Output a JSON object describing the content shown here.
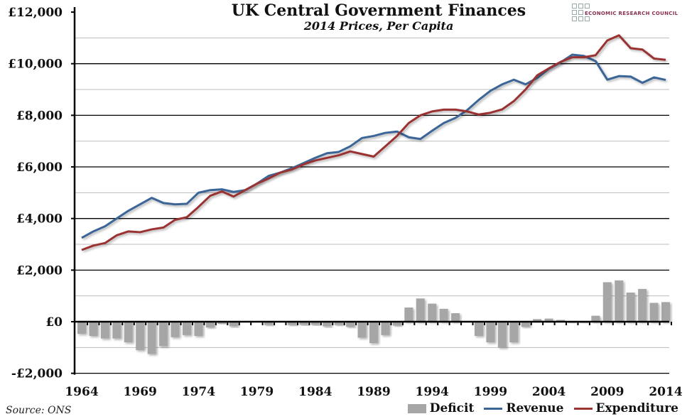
{
  "chart_data": {
    "type": "bar+line",
    "title": "UK Central Government Finances",
    "subtitle": "2014 Prices, Per Capita",
    "source": "Source: ONS",
    "logo_text": "ECONOMIC RESEARCH COUNCIL",
    "ylim": [
      -2000,
      12000
    ],
    "yticks": [
      -2000,
      0,
      2000,
      4000,
      6000,
      8000,
      10000,
      12000
    ],
    "ytick_labels": [
      "-£2,000",
      "£0",
      "£2,000",
      "£4,000",
      "£6,000",
      "£8,000",
      "£10,000",
      "£12,000"
    ],
    "xticks": [
      "1964",
      "1969",
      "1974",
      "1979",
      "1984",
      "1989",
      "1994",
      "1999",
      "2004",
      "2009",
      "2014"
    ],
    "grid": true,
    "legend_position": "bottom-right",
    "x": [
      1964,
      1965,
      1966,
      1967,
      1968,
      1969,
      1970,
      1971,
      1972,
      1973,
      1974,
      1975,
      1976,
      1977,
      1978,
      1979,
      1980,
      1981,
      1982,
      1983,
      1984,
      1985,
      1986,
      1987,
      1988,
      1989,
      1990,
      1991,
      1992,
      1993,
      1994,
      1995,
      1996,
      1997,
      1998,
      1999,
      2000,
      2001,
      2002,
      2003,
      2004,
      2005,
      2006,
      2007,
      2008,
      2009,
      2010,
      2011,
      2012,
      2013,
      2014
    ],
    "series": [
      {
        "name": "Deficit",
        "type": "bar",
        "color": "#a6a6a6",
        "values": [
          -470,
          -550,
          -650,
          -650,
          -800,
          -1100,
          -1250,
          -950,
          -600,
          -520,
          -550,
          -220,
          -80,
          -180,
          -20,
          -20,
          -130,
          -20,
          -130,
          -120,
          -120,
          -180,
          -130,
          -200,
          -620,
          -830,
          -520,
          -150,
          550,
          900,
          700,
          500,
          330,
          -30,
          -550,
          -800,
          -1000,
          -800,
          -200,
          100,
          120,
          70,
          -50,
          -50,
          230,
          1530,
          1600,
          1130,
          1270,
          730,
          760
        ]
      },
      {
        "name": "Revenue",
        "type": "line",
        "color": "#3a6597",
        "values": [
          3250,
          3500,
          3700,
          4000,
          4300,
          4550,
          4800,
          4600,
          4550,
          4570,
          5000,
          5100,
          5130,
          5030,
          5100,
          5350,
          5650,
          5780,
          5950,
          6150,
          6350,
          6530,
          6580,
          6800,
          7120,
          7200,
          7320,
          7370,
          7150,
          7080,
          7400,
          7700,
          7900,
          8200,
          8600,
          8950,
          9200,
          9380,
          9200,
          9450,
          9800,
          10050,
          10350,
          10300,
          10100,
          9380,
          9520,
          9500,
          9260,
          9470,
          9370
        ]
      },
      {
        "name": "Expenditure",
        "type": "line",
        "color": "#9b3333",
        "values": [
          2780,
          2950,
          3050,
          3350,
          3500,
          3470,
          3580,
          3650,
          3950,
          4050,
          4450,
          4880,
          5050,
          4850,
          5100,
          5350,
          5550,
          5780,
          5900,
          6100,
          6250,
          6350,
          6450,
          6600,
          6500,
          6400,
          6800,
          7200,
          7700,
          8000,
          8150,
          8220,
          8220,
          8150,
          8030,
          8100,
          8230,
          8550,
          9000,
          9550,
          9820,
          10070,
          10250,
          10250,
          10330,
          10900,
          11100,
          10600,
          10550,
          10200,
          10150
        ]
      }
    ]
  }
}
